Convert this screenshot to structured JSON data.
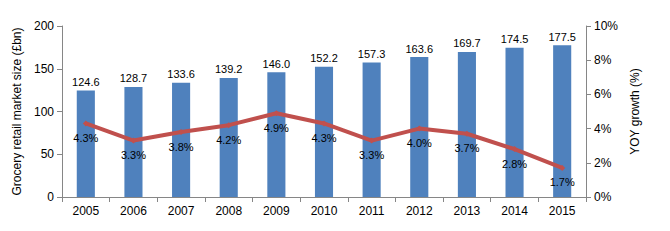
{
  "chart_data": {
    "type": "bar",
    "categories": [
      "2005",
      "2006",
      "2007",
      "2008",
      "2009",
      "2010",
      "2011",
      "2012",
      "2013",
      "2014",
      "2015"
    ],
    "y_label": "Grocery retail market size (£bn)",
    "y2_label": "YOY growth (%)",
    "ylim": [
      0,
      200
    ],
    "yticks": [
      0,
      50,
      100,
      150,
      200
    ],
    "y2lim": [
      0,
      10
    ],
    "y2ticks": [
      {
        "value": 0,
        "label": "0%"
      },
      {
        "value": 2,
        "label": "2%"
      },
      {
        "value": 4,
        "label": "4%"
      },
      {
        "value": 6,
        "label": "6%"
      },
      {
        "value": 8,
        "label": "8%"
      },
      {
        "value": 10,
        "label": "10%"
      }
    ],
    "grid": false,
    "data_labels": true,
    "series": [
      {
        "type": "bar",
        "color": "#4f81bd",
        "values": [
          124.6,
          128.7,
          133.6,
          139.2,
          146.0,
          152.2,
          157.3,
          163.6,
          169.7,
          174.5,
          177.5
        ],
        "value_labels": [
          "124.6",
          "128.7",
          "133.6",
          "139.2",
          "146.0",
          "152.2",
          "157.3",
          "163.6",
          "169.7",
          "174.5",
          "177.5"
        ]
      },
      {
        "type": "line",
        "axis": "y2",
        "color": "#c0504d",
        "marker": "diamond",
        "line_style": "solid",
        "values": [
          4.3,
          3.3,
          3.8,
          4.2,
          4.9,
          4.3,
          3.3,
          4.0,
          3.7,
          2.8,
          1.7
        ],
        "value_labels": [
          "4.3%",
          "3.3%",
          "3.8%",
          "4.2%",
          "4.9%",
          "4.3%",
          "3.3%",
          "4.0%",
          "3.7%",
          "2.8%",
          "1.7%"
        ]
      }
    ]
  }
}
